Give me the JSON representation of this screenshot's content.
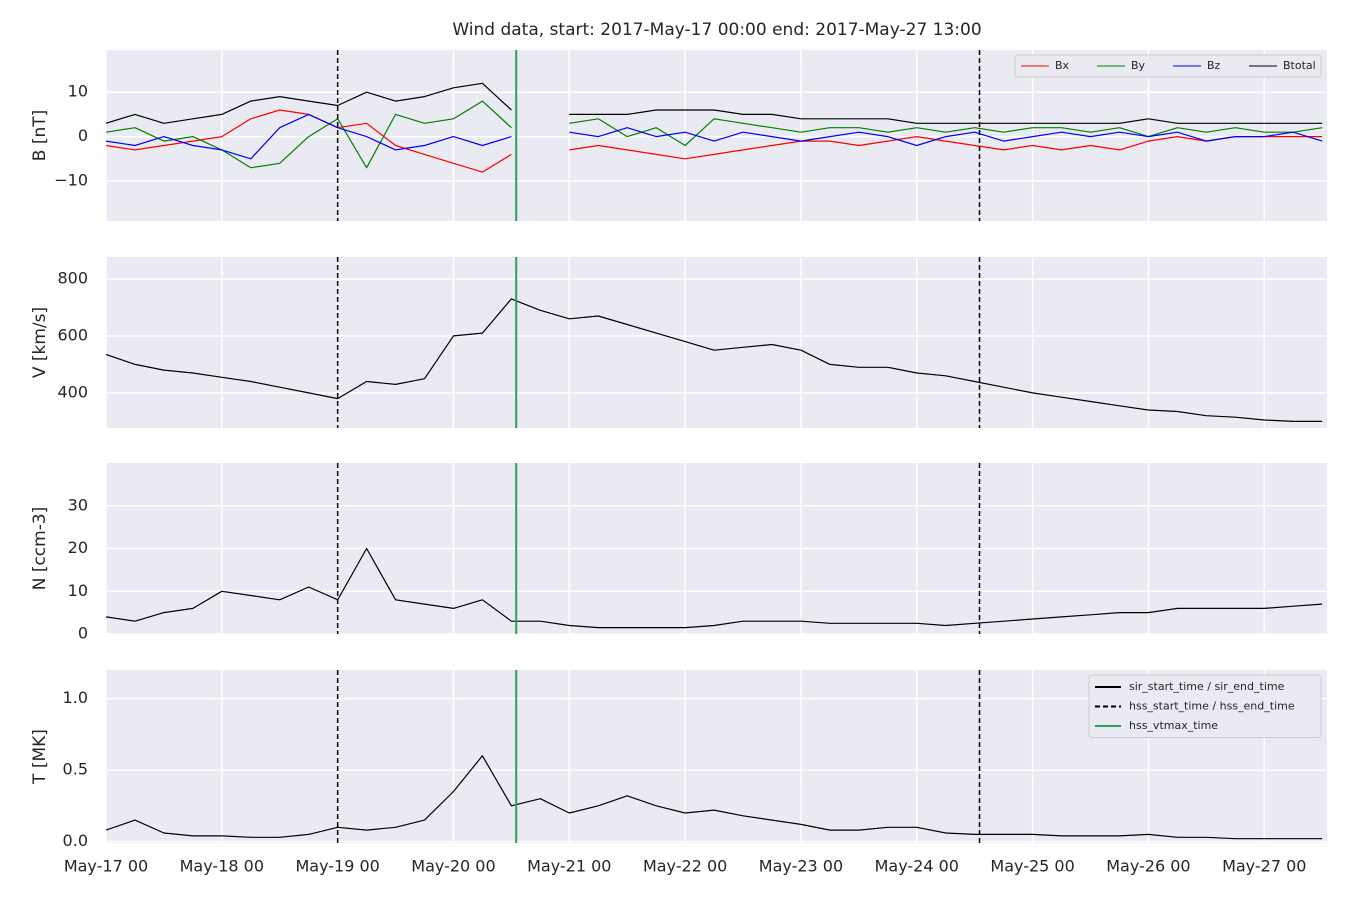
{
  "events": [
    {
      "name": "sir_start_time / sir_end_time",
      "color": "#000000",
      "dash": false,
      "times": []
    },
    {
      "name": "hss_start_time / hss_end_time",
      "color": "#000000",
      "dash": true,
      "times": [
        "2017-05-19 00:00",
        "2017-05-24 13:00"
      ]
    },
    {
      "name": "hss_vtmax_time",
      "color": "#2ca05a",
      "dash": false,
      "times": [
        "2017-05-20 13:00"
      ]
    }
  ],
  "chart_data": [
    {
      "type": "line",
      "title": "Wind data, start: 2017-May-17 00:00  end: 2017-May-27 13:00",
      "ylabel": "B [nT]",
      "legend": "upper right",
      "grid": true,
      "xlim": [
        "2017-05-17 00:00",
        "2017-05-27 13:00"
      ],
      "ylim": [
        -19,
        19.5
      ],
      "yticks": [
        {
          "value": -10,
          "label": "−10"
        },
        0,
        10
      ],
      "x": [
        "2017-05-17 00:00",
        "2017-05-17 06:00",
        "2017-05-17 12:00",
        "2017-05-17 18:00",
        "2017-05-18 00:00",
        "2017-05-18 06:00",
        "2017-05-18 12:00",
        "2017-05-18 18:00",
        "2017-05-19 00:00",
        "2017-05-19 06:00",
        "2017-05-19 12:00",
        "2017-05-19 18:00",
        "2017-05-20 00:00",
        "2017-05-20 06:00",
        "2017-05-20 12:00",
        "2017-05-20 18:00",
        "2017-05-21 00:00",
        "2017-05-21 06:00",
        "2017-05-21 12:00",
        "2017-05-21 18:00",
        "2017-05-22 00:00",
        "2017-05-22 06:00",
        "2017-05-22 12:00",
        "2017-05-22 18:00",
        "2017-05-23 00:00",
        "2017-05-23 06:00",
        "2017-05-23 12:00",
        "2017-05-23 18:00",
        "2017-05-24 00:00",
        "2017-05-24 06:00",
        "2017-05-24 12:00",
        "2017-05-24 18:00",
        "2017-05-25 00:00",
        "2017-05-25 06:00",
        "2017-05-25 12:00",
        "2017-05-25 18:00",
        "2017-05-26 00:00",
        "2017-05-26 06:00",
        "2017-05-26 12:00",
        "2017-05-26 18:00",
        "2017-05-27 00:00",
        "2017-05-27 06:00",
        "2017-05-27 12:00"
      ],
      "series": [
        {
          "name": "Bx",
          "color": "#ff0000",
          "values": [
            -2,
            -3,
            -2,
            -1,
            0,
            4,
            6,
            5,
            2,
            3,
            -2,
            -4,
            -6,
            -8,
            -4,
            null,
            -3,
            -2,
            -3,
            -4,
            -5,
            -4,
            -3,
            -2,
            -1,
            -1,
            -2,
            -1,
            0,
            -1,
            -2,
            -3,
            -2,
            -3,
            -2,
            -3,
            -1,
            0,
            -1,
            0,
            0,
            0,
            0
          ]
        },
        {
          "name": "By",
          "color": "#008000",
          "values": [
            1,
            2,
            -1,
            0,
            -3,
            -7,
            -6,
            0,
            4,
            -7,
            5,
            3,
            4,
            8,
            2,
            null,
            3,
            4,
            0,
            2,
            -2,
            4,
            3,
            2,
            1,
            2,
            2,
            1,
            2,
            1,
            2,
            1,
            2,
            2,
            1,
            2,
            0,
            2,
            1,
            2,
            1,
            1,
            2
          ]
        },
        {
          "name": "Bz",
          "color": "#0000ff",
          "values": [
            -1,
            -2,
            0,
            -2,
            -3,
            -5,
            2,
            5,
            2,
            0,
            -3,
            -2,
            0,
            -2,
            0,
            null,
            1,
            0,
            2,
            0,
            1,
            -1,
            1,
            0,
            -1,
            0,
            1,
            0,
            -2,
            0,
            1,
            -1,
            0,
            1,
            0,
            1,
            0,
            1,
            -1,
            0,
            0,
            1,
            -1
          ]
        },
        {
          "name": "Btotal",
          "color": "#000000",
          "values": [
            3,
            5,
            3,
            4,
            5,
            8,
            9,
            8,
            7,
            10,
            8,
            9,
            11,
            12,
            6,
            null,
            5,
            5,
            5,
            6,
            6,
            6,
            5,
            5,
            4,
            4,
            4,
            4,
            3,
            3,
            3,
            3,
            3,
            3,
            3,
            3,
            4,
            3,
            3,
            3,
            3,
            3,
            3
          ]
        }
      ]
    },
    {
      "type": "line",
      "ylabel": "V [km/s]",
      "grid": true,
      "color": "#000000",
      "xlim": [
        "2017-05-17 00:00",
        "2017-05-27 13:00"
      ],
      "ylim": [
        277,
        877
      ],
      "yticks": [
        400,
        600,
        800
      ],
      "x": [
        "2017-05-17 00:00",
        "2017-05-17 06:00",
        "2017-05-17 12:00",
        "2017-05-17 18:00",
        "2017-05-18 00:00",
        "2017-05-18 06:00",
        "2017-05-18 12:00",
        "2017-05-18 18:00",
        "2017-05-19 00:00",
        "2017-05-19 06:00",
        "2017-05-19 12:00",
        "2017-05-19 18:00",
        "2017-05-20 00:00",
        "2017-05-20 06:00",
        "2017-05-20 12:00",
        "2017-05-20 18:00",
        "2017-05-21 00:00",
        "2017-05-21 06:00",
        "2017-05-21 12:00",
        "2017-05-21 18:00",
        "2017-05-22 00:00",
        "2017-05-22 06:00",
        "2017-05-22 12:00",
        "2017-05-22 18:00",
        "2017-05-23 00:00",
        "2017-05-23 06:00",
        "2017-05-23 12:00",
        "2017-05-23 18:00",
        "2017-05-24 00:00",
        "2017-05-24 06:00",
        "2017-05-24 12:00",
        "2017-05-24 18:00",
        "2017-05-25 00:00",
        "2017-05-25 06:00",
        "2017-05-25 12:00",
        "2017-05-25 18:00",
        "2017-05-26 00:00",
        "2017-05-26 06:00",
        "2017-05-26 12:00",
        "2017-05-26 18:00",
        "2017-05-27 00:00",
        "2017-05-27 06:00",
        "2017-05-27 12:00"
      ],
      "values": [
        535,
        500,
        480,
        470,
        455,
        440,
        420,
        400,
        380,
        440,
        430,
        450,
        600,
        610,
        730,
        690,
        660,
        670,
        640,
        610,
        580,
        550,
        560,
        570,
        550,
        500,
        490,
        490,
        470,
        460,
        440,
        420,
        400,
        385,
        370,
        355,
        340,
        335,
        320,
        315,
        305,
        300,
        300
      ]
    },
    {
      "type": "line",
      "ylabel": "N [ccm-3]",
      "grid": true,
      "color": "#000000",
      "xlim": [
        "2017-05-17 00:00",
        "2017-05-27 13:00"
      ],
      "ylim": [
        0,
        40
      ],
      "yticks": [
        0,
        10,
        20,
        30
      ],
      "x": [
        "2017-05-17 00:00",
        "2017-05-17 06:00",
        "2017-05-17 12:00",
        "2017-05-17 18:00",
        "2017-05-18 00:00",
        "2017-05-18 06:00",
        "2017-05-18 12:00",
        "2017-05-18 18:00",
        "2017-05-19 00:00",
        "2017-05-19 06:00",
        "2017-05-19 12:00",
        "2017-05-19 18:00",
        "2017-05-20 00:00",
        "2017-05-20 06:00",
        "2017-05-20 12:00",
        "2017-05-20 18:00",
        "2017-05-21 00:00",
        "2017-05-21 06:00",
        "2017-05-21 12:00",
        "2017-05-21 18:00",
        "2017-05-22 00:00",
        "2017-05-22 06:00",
        "2017-05-22 12:00",
        "2017-05-22 18:00",
        "2017-05-23 00:00",
        "2017-05-23 06:00",
        "2017-05-23 12:00",
        "2017-05-23 18:00",
        "2017-05-24 00:00",
        "2017-05-24 06:00",
        "2017-05-24 12:00",
        "2017-05-24 18:00",
        "2017-05-25 00:00",
        "2017-05-25 06:00",
        "2017-05-25 12:00",
        "2017-05-25 18:00",
        "2017-05-26 00:00",
        "2017-05-26 06:00",
        "2017-05-26 12:00",
        "2017-05-26 18:00",
        "2017-05-27 00:00",
        "2017-05-27 06:00",
        "2017-05-27 12:00"
      ],
      "values": [
        4,
        3,
        5,
        6,
        10,
        9,
        8,
        11,
        8,
        20,
        8,
        7,
        6,
        8,
        3,
        3,
        2,
        1.5,
        1.5,
        1.5,
        1.5,
        2,
        3,
        3,
        3,
        2.5,
        2.5,
        2.5,
        2.5,
        2,
        2.5,
        3,
        3.5,
        4,
        4.5,
        5,
        5,
        6,
        6,
        6,
        6,
        6.5,
        7
      ]
    },
    {
      "type": "line",
      "ylabel": "T [MK]",
      "grid": true,
      "color": "#000000",
      "event_legend": "upper right",
      "xlim": [
        "2017-05-17 00:00",
        "2017-05-27 13:00"
      ],
      "ylim": [
        -0.01,
        1.2
      ],
      "yticks": [
        {
          "value": 0,
          "label": "0.0"
        },
        0.5,
        {
          "value": 1,
          "label": "1.0"
        }
      ],
      "xticks": [
        {
          "value": "2017-05-17 00:00",
          "label": "May-17 00"
        },
        {
          "value": "2017-05-18 00:00",
          "label": "May-18 00"
        },
        {
          "value": "2017-05-19 00:00",
          "label": "May-19 00"
        },
        {
          "value": "2017-05-20 00:00",
          "label": "May-20 00"
        },
        {
          "value": "2017-05-21 00:00",
          "label": "May-21 00"
        },
        {
          "value": "2017-05-22 00:00",
          "label": "May-22 00"
        },
        {
          "value": "2017-05-23 00:00",
          "label": "May-23 00"
        },
        {
          "value": "2017-05-24 00:00",
          "label": "May-24 00"
        },
        {
          "value": "2017-05-25 00:00",
          "label": "May-25 00"
        },
        {
          "value": "2017-05-26 00:00",
          "label": "May-26 00"
        },
        {
          "value": "2017-05-27 00:00",
          "label": "May-27 00"
        }
      ],
      "x": [
        "2017-05-17 00:00",
        "2017-05-17 06:00",
        "2017-05-17 12:00",
        "2017-05-17 18:00",
        "2017-05-18 00:00",
        "2017-05-18 06:00",
        "2017-05-18 12:00",
        "2017-05-18 18:00",
        "2017-05-19 00:00",
        "2017-05-19 06:00",
        "2017-05-19 12:00",
        "2017-05-19 18:00",
        "2017-05-20 00:00",
        "2017-05-20 06:00",
        "2017-05-20 12:00",
        "2017-05-20 18:00",
        "2017-05-21 00:00",
        "2017-05-21 06:00",
        "2017-05-21 12:00",
        "2017-05-21 18:00",
        "2017-05-22 00:00",
        "2017-05-22 06:00",
        "2017-05-22 12:00",
        "2017-05-22 18:00",
        "2017-05-23 00:00",
        "2017-05-23 06:00",
        "2017-05-23 12:00",
        "2017-05-23 18:00",
        "2017-05-24 00:00",
        "2017-05-24 06:00",
        "2017-05-24 12:00",
        "2017-05-24 18:00",
        "2017-05-25 00:00",
        "2017-05-25 06:00",
        "2017-05-25 12:00",
        "2017-05-25 18:00",
        "2017-05-26 00:00",
        "2017-05-26 06:00",
        "2017-05-26 12:00",
        "2017-05-26 18:00",
        "2017-05-27 00:00",
        "2017-05-27 06:00",
        "2017-05-27 12:00"
      ],
      "values": [
        0.08,
        0.15,
        0.06,
        0.04,
        0.04,
        0.03,
        0.03,
        0.05,
        0.1,
        0.08,
        0.1,
        0.15,
        0.35,
        0.6,
        0.25,
        0.3,
        0.2,
        0.25,
        0.32,
        0.25,
        0.2,
        0.22,
        0.18,
        0.15,
        0.12,
        0.08,
        0.08,
        0.1,
        0.1,
        0.06,
        0.05,
        0.05,
        0.05,
        0.04,
        0.04,
        0.04,
        0.05,
        0.03,
        0.03,
        0.02,
        0.02,
        0.02,
        0.02
      ]
    }
  ]
}
